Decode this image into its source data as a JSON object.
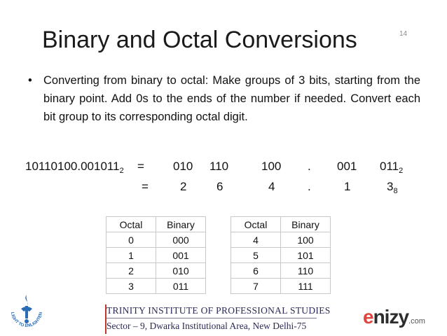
{
  "slide": {
    "title": "Binary and Octal Conversions",
    "number": "14",
    "bullet": "Converting from binary to octal: Make groups of 3 bits, starting from the binary point. Add 0s to the ends of the number if needed. Convert each bit group to its corresponding octal digit."
  },
  "conversion": {
    "row1": {
      "lhs": "10110100.001011",
      "lhs_sub": "2",
      "eq": "=",
      "groups": [
        "010",
        "110",
        "100",
        ".",
        "001",
        "011"
      ],
      "last_sub": "2"
    },
    "row2": {
      "eq": "=",
      "digits": [
        "2",
        "6",
        "4",
        ".",
        "1",
        "3"
      ],
      "last_sub": "8"
    }
  },
  "tables": [
    {
      "headers": [
        "Octal",
        "Binary"
      ],
      "rows": [
        [
          "0",
          "000"
        ],
        [
          "1",
          "001"
        ],
        [
          "2",
          "010"
        ],
        [
          "3",
          "011"
        ]
      ]
    },
    {
      "headers": [
        "Octal",
        "Binary"
      ],
      "rows": [
        [
          "4",
          "100"
        ],
        [
          "5",
          "101"
        ],
        [
          "6",
          "110"
        ],
        [
          "7",
          "111"
        ]
      ]
    }
  ],
  "footer": {
    "line1": "TRINITY INSTITUTE OF PROFESSIONAL STUDIES",
    "line2": "Sector – 9, Dwarka Institutional Area, New Delhi-75",
    "left_logo_text": "LIGHT TO ENLIGHTEN",
    "right_logo_e": "e",
    "right_logo_rest": "nizy",
    "right_logo_com": ".com"
  },
  "colors": {
    "accent": "#c0392b",
    "footer_text": "#2a2a55",
    "logo_blue": "#2a6db5"
  }
}
